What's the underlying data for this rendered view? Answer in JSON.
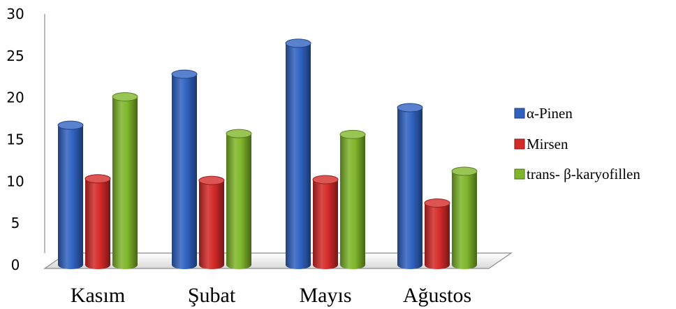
{
  "chart_data": {
    "type": "bar",
    "title": "",
    "xlabel": "",
    "ylabel": "",
    "ylim": [
      0,
      30
    ],
    "yticks": [
      0,
      5,
      10,
      15,
      20,
      25,
      30
    ],
    "grid": false,
    "legend_position": "right",
    "categories": [
      "Kasım",
      "Şubat",
      "Mayıs",
      "Ağustos"
    ],
    "series": [
      {
        "name": "α-Pinen",
        "values": [
          16.7,
          22.8,
          26.5,
          18.8
        ],
        "color": "#2f62c1"
      },
      {
        "name": "Mirsen",
        "values": [
          10.3,
          10.1,
          10.2,
          7.4
        ],
        "color": "#d42a28"
      },
      {
        "name": "trans- β-karyofillen",
        "values": [
          20.1,
          15.7,
          15.6,
          11.2
        ],
        "color": "#7fb62a"
      }
    ]
  }
}
